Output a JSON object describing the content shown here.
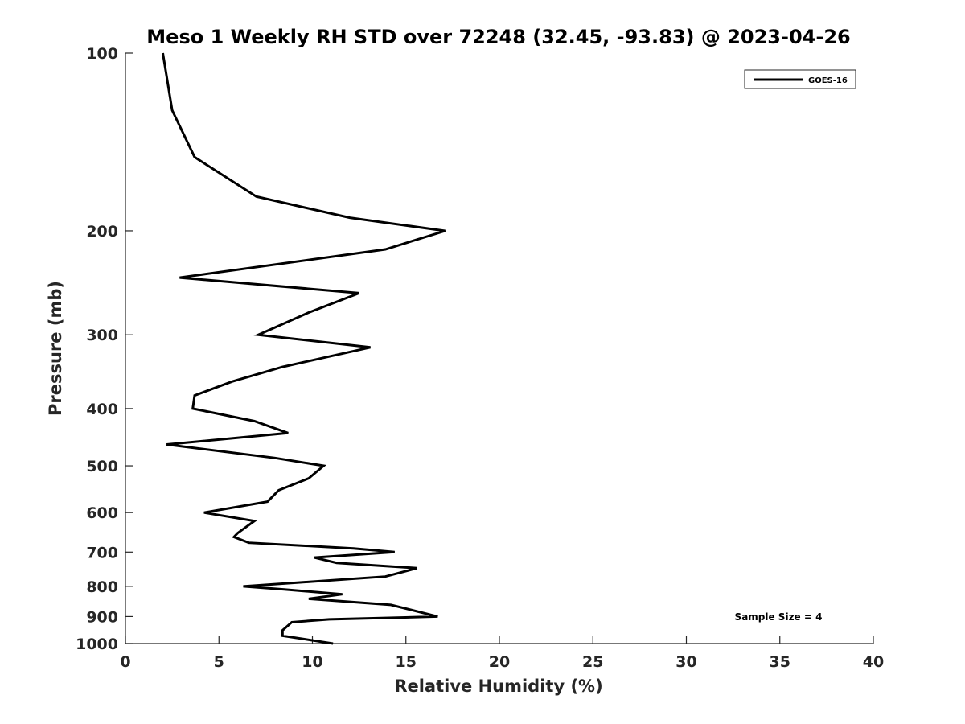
{
  "chart_data": {
    "type": "line",
    "title": "Meso 1 Weekly RH STD over 72248 (32.45, -93.83) @ 2023-04-26",
    "xlabel": "Relative Humidity (%)",
    "ylabel": "Pressure (mb)",
    "xlim": [
      0,
      40
    ],
    "ylim": [
      1000,
      100
    ],
    "yscale": "log",
    "y_inverted": true,
    "grid": false,
    "legend_position": "top-right",
    "x_ticks": [
      "0",
      "5",
      "10",
      "15",
      "20",
      "25",
      "30",
      "35",
      "40"
    ],
    "y_ticks": [
      "100",
      "200",
      "300",
      "400",
      "500",
      "600",
      "700",
      "800",
      "900",
      "1000"
    ],
    "annotation": "Sample Size = 4",
    "series": [
      {
        "name": "GOES-16",
        "color": "#000000",
        "points": [
          [
            2.0,
            100
          ],
          [
            2.5,
            125
          ],
          [
            3.7,
            150
          ],
          [
            7.0,
            175
          ],
          [
            12.0,
            190
          ],
          [
            17.1,
            200
          ],
          [
            13.9,
            215
          ],
          [
            2.9,
            240
          ],
          [
            12.5,
            255
          ],
          [
            9.8,
            275
          ],
          [
            7.1,
            300
          ],
          [
            13.1,
            315
          ],
          [
            8.4,
            340
          ],
          [
            5.7,
            360
          ],
          [
            3.7,
            380
          ],
          [
            3.6,
            400
          ],
          [
            6.9,
            420
          ],
          [
            8.7,
            440
          ],
          [
            2.2,
            460
          ],
          [
            8.0,
            485
          ],
          [
            10.6,
            500
          ],
          [
            9.8,
            525
          ],
          [
            8.2,
            550
          ],
          [
            7.6,
            575
          ],
          [
            4.2,
            600
          ],
          [
            6.9,
            620
          ],
          [
            6.0,
            650
          ],
          [
            5.8,
            660
          ],
          [
            6.6,
            675
          ],
          [
            12.2,
            690
          ],
          [
            14.4,
            700
          ],
          [
            10.1,
            715
          ],
          [
            11.3,
            730
          ],
          [
            15.6,
            745
          ],
          [
            13.9,
            770
          ],
          [
            6.3,
            800
          ],
          [
            8.5,
            810
          ],
          [
            11.6,
            825
          ],
          [
            9.8,
            840
          ],
          [
            14.2,
            860
          ],
          [
            16.7,
            900
          ],
          [
            10.9,
            910
          ],
          [
            8.9,
            920
          ],
          [
            8.4,
            950
          ],
          [
            8.4,
            970
          ],
          [
            11.1,
            1000
          ]
        ]
      }
    ]
  }
}
